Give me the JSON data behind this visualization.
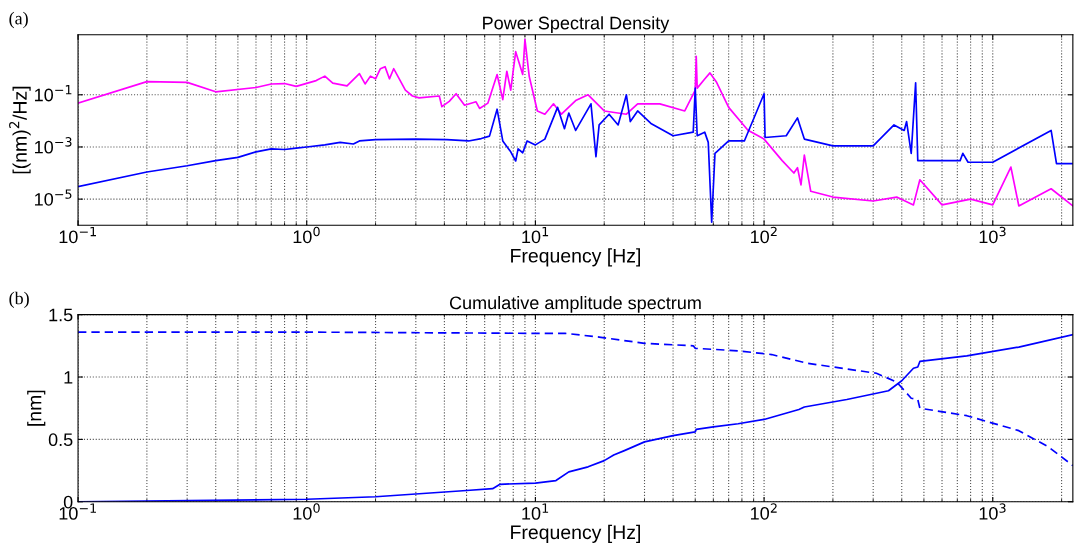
{
  "chart_data": [
    {
      "type": "line",
      "title": "Power Spectral Density",
      "xlabel": "Frequency [Hz]",
      "ylabel": "[(nm)$^{2}$/Hz]",
      "annotations": [
        "(a)"
      ],
      "log": "xy",
      "grid": true,
      "xlim": [
        0.1,
        2240
      ],
      "ylim": [
        1e-06,
        20
      ],
      "xticks": [
        {
          "value": 0.1,
          "label": "10$^{−1}$"
        },
        {
          "value": 1,
          "label": "10$^{0}$"
        },
        {
          "value": 10,
          "label": "10$^{1}$"
        },
        {
          "value": 100,
          "label": "10$^{2}$"
        },
        {
          "value": 1000,
          "label": "10$^{3}$"
        }
      ],
      "yticks": [
        {
          "value": 1e-05,
          "label": "10$^{−5}$"
        },
        {
          "value": 0.001,
          "label": "10$^{−3}$"
        },
        {
          "value": 0.1,
          "label": "10$^{−1}$"
        }
      ],
      "series": [
        {
          "color": "#ff00ff",
          "x": [
            0.1,
            0.2,
            0.3,
            0.4,
            0.6,
            0.7,
            0.8,
            0.9,
            1.1,
            1.2,
            1.3,
            1.5,
            1.7,
            1.8,
            1.9,
            2.0,
            2.1,
            2.2,
            2.3,
            2.4,
            2.7,
            2.9,
            3.1,
            3.8,
            3.9,
            4.2,
            4.5,
            4.9,
            5.5,
            5.7,
            6.2,
            6.8,
            7.2,
            7.5,
            7.8,
            8.2,
            8.8,
            9.0,
            9.4,
            10.2,
            11,
            12,
            13,
            15,
            17,
            20,
            25,
            28,
            35,
            45,
            50,
            50.5,
            51,
            55,
            58,
            62,
            70,
            85,
            100,
            120,
            135,
            140,
            145,
            150,
            160,
            200,
            300,
            380,
            450,
            480,
            600,
            800,
            1000,
            1200,
            1300,
            1800,
            2240
          ],
          "values": [
            0.048,
            0.32,
            0.3,
            0.13,
            0.19,
            0.26,
            0.27,
            0.21,
            0.35,
            0.52,
            0.28,
            0.22,
            0.65,
            0.26,
            0.52,
            0.41,
            1.0,
            1.2,
            0.41,
            1.0,
            0.15,
            0.09,
            0.076,
            0.09,
            0.035,
            0.056,
            0.11,
            0.04,
            0.054,
            0.03,
            0.048,
            0.6,
            0.065,
            0.8,
            0.15,
            4.5,
            0.6,
            13.5,
            0.5,
            0.024,
            0.018,
            0.045,
            0.018,
            0.06,
            0.1,
            0.024,
            0.018,
            0.045,
            0.045,
            0.024,
            0.15,
            3,
            0.18,
            0.4,
            0.69,
            0.3,
            0.033,
            0.0044,
            0.002,
            0.0003,
            0.0001,
            0.00016,
            3.5e-05,
            0.00049,
            2e-05,
            1.2e-05,
            8.5e-06,
            1.2e-05,
            6e-06,
            5.5e-05,
            6e-06,
            1e-05,
            6e-06,
            0.00017,
            5.5e-06,
            2.5e-05,
            5.5e-06
          ]
        },
        {
          "color": "#0000ff",
          "x": [
            0.1,
            0.2,
            0.3,
            0.4,
            0.5,
            0.6,
            0.7,
            0.8,
            0.9,
            1.0,
            1.2,
            1.4,
            1.6,
            1.7,
            2.0,
            3.0,
            4.1,
            5.1,
            5.8,
            6.3,
            6.8,
            7.2,
            7.8,
            8.2,
            8.4,
            8.8,
            9.2,
            10,
            11,
            12.5,
            13.4,
            14,
            15,
            17.5,
            18.4,
            19,
            21,
            23,
            25,
            26,
            28,
            32,
            40,
            49,
            50,
            51,
            55,
            57,
            59,
            61,
            70,
            82,
            100,
            101,
            125,
            140,
            150,
            200,
            300,
            370,
            410,
            420,
            440,
            460,
            470,
            720,
            740,
            780,
            1000,
            1800,
            1900,
            2240
          ],
          "values": [
            3e-05,
            0.00011,
            0.00019,
            0.0003,
            0.0004,
            0.00065,
            0.00084,
            0.0008,
            0.0009,
            0.001,
            0.0012,
            0.0015,
            0.0013,
            0.0017,
            0.0019,
            0.002,
            0.0019,
            0.0017,
            0.0021,
            0.0026,
            0.028,
            0.0017,
            0.00065,
            0.00029,
            0.00084,
            0.0006,
            0.0017,
            0.0012,
            0.002,
            0.033,
            0.005,
            0.02,
            0.0043,
            0.045,
            0.00042,
            0.007,
            0.018,
            0.007,
            0.1,
            0.0094,
            0.024,
            0.008,
            0.0027,
            0.0037,
            0.18,
            0.0027,
            0.0037,
            0.0015,
            1.3e-06,
            0.00057,
            0.0017,
            0.0017,
            0.11,
            0.0023,
            0.0027,
            0.013,
            0.002,
            0.0011,
            0.0011,
            0.007,
            0.0043,
            0.0094,
            0.00057,
            0.29,
            0.0003,
            0.0003,
            0.00057,
            0.00026,
            0.00026,
            0.0043,
            0.00023,
            0.00023
          ]
        }
      ]
    },
    {
      "type": "line",
      "title": "Cumulative amplitude spectrum",
      "xlabel": "Frequency [Hz]",
      "ylabel": "[nm]",
      "annotations": [
        "(b)"
      ],
      "log": "x",
      "grid": true,
      "xlim": [
        0.1,
        2240
      ],
      "ylim": [
        0,
        1.5
      ],
      "xticks": [
        {
          "value": 0.1,
          "label": "10$^{−1}$"
        },
        {
          "value": 1,
          "label": "10$^{0}$"
        },
        {
          "value": 10,
          "label": "10$^{1}$"
        },
        {
          "value": 100,
          "label": "10$^{2}$"
        },
        {
          "value": 1000,
          "label": "10$^{3}$"
        }
      ],
      "yticks": [
        0,
        0.5,
        1,
        1.5
      ],
      "series": [
        {
          "color": "#0000ff",
          "line_style": "solid",
          "x": [
            0.1,
            1,
            2,
            5,
            6.5,
            7,
            10,
            12.3,
            14,
            17,
            20,
            22,
            24.5,
            30,
            40,
            50,
            50.5,
            60,
            77,
            100,
            142,
            150,
            230,
            350,
            400,
            450,
            470,
            480,
            770,
            1300,
            2240
          ],
          "values": [
            0,
            0.02,
            0.04,
            0.09,
            0.105,
            0.14,
            0.15,
            0.17,
            0.24,
            0.28,
            0.33,
            0.375,
            0.41,
            0.48,
            0.53,
            0.56,
            0.58,
            0.6,
            0.625,
            0.66,
            0.74,
            0.76,
            0.82,
            0.89,
            0.97,
            1.07,
            1.08,
            1.125,
            1.17,
            1.24,
            1.34
          ]
        },
        {
          "color": "#0000ff",
          "line_style": "dashed",
          "x": [
            0.1,
            1,
            10,
            13.5,
            19,
            30,
            49,
            50,
            77,
            108,
            155,
            310,
            380,
            440,
            470,
            480,
            770,
            1300,
            1750,
            2240
          ],
          "values": [
            1.36,
            1.36,
            1.35,
            1.35,
            1.32,
            1.27,
            1.25,
            1.23,
            1.21,
            1.18,
            1.11,
            1.03,
            0.96,
            0.83,
            0.82,
            0.75,
            0.69,
            0.57,
            0.44,
            0.29
          ]
        }
      ]
    }
  ]
}
